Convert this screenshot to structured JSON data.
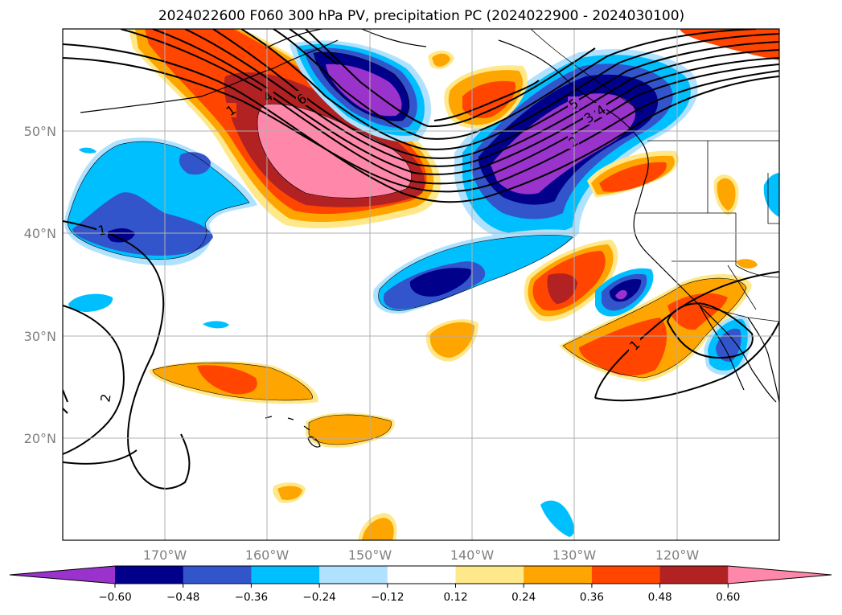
{
  "title": "2024022600 F060 300 hPa PV, precipitation PC (2024022900 - 2024030100)",
  "map": {
    "lon_labels": [
      "170°W",
      "160°W",
      "150°W",
      "140°W",
      "130°W",
      "120°W"
    ],
    "lat_labels": [
      "50°N",
      "40°N",
      "30°N",
      "20°N"
    ],
    "pv_contour_labels": [
      "1",
      "2",
      "3",
      "4",
      "5",
      "6"
    ]
  },
  "colorbar": {
    "ticks": [
      "−0.60",
      "−0.48",
      "−0.36",
      "−0.24",
      "−0.12",
      "0.12",
      "0.24",
      "0.36",
      "0.48",
      "0.60"
    ],
    "colors": [
      "#9933cc",
      "#00008b",
      "#3355cc",
      "#00bfff",
      "#b0e2ff",
      "#ffffff",
      "#ffe88a",
      "#ffa500",
      "#ff4500",
      "#b22222",
      "#ff88aa"
    ]
  }
}
